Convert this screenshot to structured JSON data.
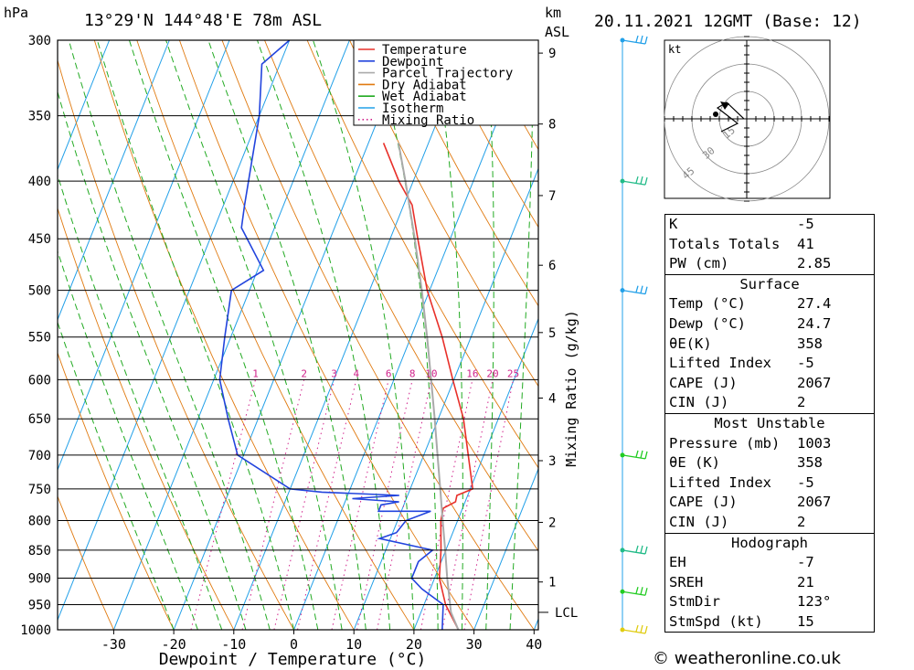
{
  "header": {
    "location": "13°29'N  144°48'E  78m  ASL",
    "datetime": "20.11.2021  12GMT  (Base: 12)",
    "left_unit": "hPa",
    "km_unit": "km",
    "asl_unit": "ASL"
  },
  "chart_data": {
    "type": "line",
    "subtype": "skew-T log-P",
    "xlabel": "Dewpoint / Temperature (°C)",
    "ylabel": "hPa",
    "right_label": "Mixing Ratio (g/kg)",
    "x_ticks": [
      -30,
      -20,
      -10,
      0,
      10,
      20,
      30,
      40
    ],
    "pressure_levels": [
      300,
      350,
      400,
      450,
      500,
      550,
      600,
      650,
      700,
      750,
      800,
      850,
      900,
      950,
      1000
    ],
    "km_ticks": [
      {
        "km": "1",
        "p": 907
      },
      {
        "km": "2",
        "p": 803
      },
      {
        "km": "3",
        "p": 708
      },
      {
        "km": "4",
        "p": 623
      },
      {
        "km": "5",
        "p": 545
      },
      {
        "km": "6",
        "p": 475
      },
      {
        "km": "7",
        "p": 412
      },
      {
        "km": "8",
        "p": 356
      },
      {
        "km": "9",
        "p": 308
      }
    ],
    "lcl_label": "LCL",
    "lcl_pressure": 965,
    "mixing_ratio_labels": [
      "1",
      "2",
      "3",
      "4",
      "6",
      "8",
      "10",
      "16",
      "20",
      "25"
    ],
    "mixing_ratio_values": [
      1,
      2,
      3,
      4,
      6,
      8,
      10,
      16,
      20,
      25
    ],
    "legend": [
      {
        "name": "Temperature",
        "color": "#e8302a"
      },
      {
        "name": "Dewpoint",
        "color": "#2244dd"
      },
      {
        "name": "Parcel Trajectory",
        "color": "#aaaaaa"
      },
      {
        "name": "Dry Adiabat",
        "color": "#e07a10"
      },
      {
        "name": "Wet Adiabat",
        "color": "#22aa22"
      },
      {
        "name": "Isotherm",
        "color": "#22a0e8"
      },
      {
        "name": "Mixing Ratio",
        "color": "#d0208a"
      }
    ],
    "series": [
      {
        "name": "Temperature",
        "points": [
          [
            1000,
            27.4
          ],
          [
            950,
            23.6
          ],
          [
            900,
            20.8
          ],
          [
            850,
            19.2
          ],
          [
            800,
            17.2
          ],
          [
            780,
            16.8
          ],
          [
            770,
            18.4
          ],
          [
            760,
            18.2
          ],
          [
            750,
            20.4
          ],
          [
            700,
            17.4
          ],
          [
            650,
            14.2
          ],
          [
            600,
            9.8
          ],
          [
            550,
            5.2
          ],
          [
            500,
            -0.4
          ],
          [
            450,
            -5.4
          ],
          [
            420,
            -8.6
          ],
          [
            400,
            -12.4
          ],
          [
            370,
            -17.5
          ]
        ]
      },
      {
        "name": "Dewpoint",
        "points": [
          [
            1000,
            24.7
          ],
          [
            950,
            23.2
          ],
          [
            920,
            18.6
          ],
          [
            900,
            16.2
          ],
          [
            870,
            16.2
          ],
          [
            850,
            17.8
          ],
          [
            830,
            8.2
          ],
          [
            820,
            10.6
          ],
          [
            800,
            11.4
          ],
          [
            785,
            14.9
          ],
          [
            785,
            6.2
          ],
          [
            775,
            6.2
          ],
          [
            770,
            9.0
          ],
          [
            765,
            1.0
          ],
          [
            760,
            8.6
          ],
          [
            755,
            -4.5
          ],
          [
            750,
            -10.0
          ],
          [
            700,
            -21.0
          ],
          [
            650,
            -25.0
          ],
          [
            600,
            -29.0
          ],
          [
            550,
            -31.0
          ],
          [
            500,
            -33.0
          ],
          [
            480,
            -29.0
          ],
          [
            440,
            -35.5
          ],
          [
            420,
            -36.5
          ],
          [
            350,
            -40.0
          ],
          [
            315,
            -43.0
          ],
          [
            300,
            -40.0
          ]
        ]
      },
      {
        "name": "Parcel Trajectory",
        "points": [
          [
            1000,
            27.4
          ],
          [
            965,
            25.0
          ],
          [
            900,
            22.1
          ],
          [
            850,
            19.9
          ],
          [
            800,
            17.5
          ],
          [
            750,
            15.0
          ],
          [
            700,
            12.3
          ],
          [
            650,
            9.4
          ],
          [
            600,
            6.2
          ],
          [
            550,
            2.7
          ],
          [
            500,
            -1.3
          ],
          [
            450,
            -5.9
          ],
          [
            400,
            -11.3
          ],
          [
            370,
            -15.0
          ]
        ]
      }
    ],
    "wind_barbs": [
      {
        "p": 1000,
        "color": "#e0cc10"
      },
      {
        "p": 925,
        "color": "#22cc22"
      },
      {
        "p": 850,
        "color": "#22bb88"
      },
      {
        "p": 700,
        "color": "#22cc22"
      },
      {
        "p": 500,
        "color": "#22a0e8"
      },
      {
        "p": 400,
        "color": "#22bb88"
      },
      {
        "p": 300,
        "color": "#22a0e8"
      }
    ],
    "hodograph": {
      "unit": "kt",
      "rings": [
        "15",
        "30",
        "45"
      ]
    }
  },
  "indices": {
    "k_label": "K",
    "k": "-5",
    "tt_label": "Totals Totals",
    "tt": "41",
    "pw_label": "PW (cm)",
    "pw": "2.85"
  },
  "surface": {
    "title": "Surface",
    "temp_label": "Temp (°C)",
    "temp": "27.4",
    "dewp_label": "Dewp (°C)",
    "dewp": "24.7",
    "theta_label": "θE(K)",
    "theta": "358",
    "li_label": "Lifted Index",
    "li": "-5",
    "cape_label": "CAPE (J)",
    "cape": "2067",
    "cin_label": "CIN (J)",
    "cin": "2"
  },
  "most_unstable": {
    "title": "Most Unstable",
    "pres_label": "Pressure (mb)",
    "pres": "1003",
    "theta_label": "θE (K)",
    "theta": "358",
    "li_label": "Lifted Index",
    "li": "-5",
    "cape_label": "CAPE (J)",
    "cape": "2067",
    "cin_label": "CIN (J)",
    "cin": "2"
  },
  "hodograph_stats": {
    "title": "Hodograph",
    "eh_label": "EH",
    "eh": "-7",
    "srh_label": "SREH",
    "srh": "21",
    "dir_label": "StmDir",
    "dir": "123°",
    "spd_label": "StmSpd (kt)",
    "spd": "15"
  },
  "credit": "© weatheronline.co.uk"
}
